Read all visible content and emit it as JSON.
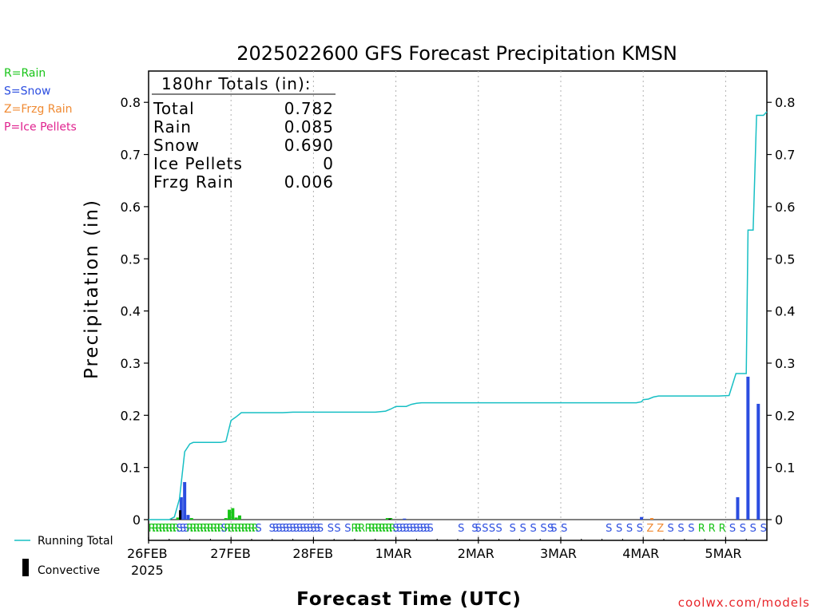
{
  "chart_data": {
    "type": "bar",
    "title": "2025022600 GFS Forecast Precipitation KMSN",
    "xlabel": "Forecast Time (UTC)",
    "ylabel": "Precipitation (in)",
    "ylim": [
      0,
      0.86
    ],
    "yticks": [
      "0",
      "0.1",
      "0.2",
      "0.3",
      "0.4",
      "0.5",
      "0.6",
      "0.7",
      "0.8"
    ],
    "xlim_hours": [
      0,
      180
    ],
    "x_ticks": [
      {
        "label": "26FEB",
        "hour": 0,
        "sub": "2025"
      },
      {
        "label": "27FEB",
        "hour": 24
      },
      {
        "label": "28FEB",
        "hour": 48
      },
      {
        "label": "1MAR",
        "hour": 72
      },
      {
        "label": "2MAR",
        "hour": 96
      },
      {
        "label": "3MAR",
        "hour": 120
      },
      {
        "label": "4MAR",
        "hour": 144
      },
      {
        "label": "5MAR",
        "hour": 168
      }
    ],
    "legend": [
      {
        "label": "R=Rain",
        "color": "#17c417"
      },
      {
        "label": "S=Snow",
        "color": "#2b4de0"
      },
      {
        "label": "Z=Frzg Rain",
        "color": "#f08a32"
      },
      {
        "label": "P=Ice Pellets",
        "color": "#e0238f"
      }
    ],
    "series_legend": [
      {
        "label": "Running Total",
        "color": "#17bfc4"
      },
      {
        "label": "Convective",
        "color": "#000000"
      }
    ],
    "totals": {
      "header": "180hr Totals (in):",
      "rows": [
        {
          "name": "Total",
          "value": "0.782"
        },
        {
          "name": "Rain",
          "value": "0.085"
        },
        {
          "name": "Snow",
          "value": "0.690"
        },
        {
          "name": "Ice Pellets",
          "value": "0"
        },
        {
          "name": "Frzg Rain",
          "value": "0.006"
        }
      ]
    },
    "running_total": [
      [
        0,
        0
      ],
      [
        6,
        0
      ],
      [
        7.5,
        0.005
      ],
      [
        9,
        0.04
      ],
      [
        10.5,
        0.13
      ],
      [
        12,
        0.145
      ],
      [
        13,
        0.148
      ],
      [
        21,
        0.148
      ],
      [
        22.5,
        0.15
      ],
      [
        24,
        0.19
      ],
      [
        25.5,
        0.197
      ],
      [
        27,
        0.205
      ],
      [
        39,
        0.205
      ],
      [
        42,
        0.206
      ],
      [
        66,
        0.206
      ],
      [
        69,
        0.208
      ],
      [
        70.5,
        0.212
      ],
      [
        72,
        0.217
      ],
      [
        75,
        0.217
      ],
      [
        76.5,
        0.221
      ],
      [
        78,
        0.223
      ],
      [
        79.5,
        0.224
      ],
      [
        142,
        0.224
      ],
      [
        143.5,
        0.226
      ],
      [
        144,
        0.23
      ],
      [
        145.5,
        0.231
      ],
      [
        147,
        0.235
      ],
      [
        148.5,
        0.237
      ],
      [
        166,
        0.237
      ],
      [
        169,
        0.238
      ],
      [
        171,
        0.28
      ],
      [
        174,
        0.28
      ],
      [
        174.5,
        0.555
      ],
      [
        176,
        0.555
      ],
      [
        177,
        0.775
      ],
      [
        179,
        0.775
      ],
      [
        180,
        0.782
      ]
    ],
    "bars": [
      {
        "hour": 8.5,
        "value": 0.004,
        "type": "R"
      },
      {
        "hour": 9.5,
        "value": 0.043,
        "type": "S"
      },
      {
        "hour": 10.5,
        "value": 0.072,
        "type": "S"
      },
      {
        "hour": 11.5,
        "value": 0.009,
        "type": "S"
      },
      {
        "hour": 12.5,
        "value": 0.003,
        "type": "R"
      },
      {
        "hour": 22.5,
        "value": 0.003,
        "type": "R"
      },
      {
        "hour": 23.5,
        "value": 0.019,
        "type": "R"
      },
      {
        "hour": 24.5,
        "value": 0.022,
        "type": "R"
      },
      {
        "hour": 25.5,
        "value": 0.004,
        "type": "R"
      },
      {
        "hour": 26.5,
        "value": 0.008,
        "type": "R"
      },
      {
        "hour": 69.5,
        "value": 0.003,
        "type": "R"
      },
      {
        "hour": 70.5,
        "value": 0.003,
        "type": "R"
      },
      {
        "hour": 74.5,
        "value": 0.002,
        "type": "S"
      },
      {
        "hour": 143.5,
        "value": 0.005,
        "type": "S"
      },
      {
        "hour": 146.5,
        "value": 0.003,
        "type": "Z"
      },
      {
        "hour": 171.5,
        "value": 0.043,
        "type": "S"
      },
      {
        "hour": 174.5,
        "value": 0.274,
        "type": "S"
      },
      {
        "hour": 177.5,
        "value": 0.222,
        "type": "S"
      }
    ],
    "convective": [
      {
        "hour": 9.2,
        "value": 0.018
      },
      {
        "hour": 70.2,
        "value": 0.002
      }
    ],
    "ptype_strip": [
      {
        "hour": 1,
        "t": "R"
      },
      {
        "hour": 2,
        "t": "R"
      },
      {
        "hour": 3,
        "t": "R"
      },
      {
        "hour": 4,
        "t": "R"
      },
      {
        "hour": 5,
        "t": "R"
      },
      {
        "hour": 6,
        "t": "R"
      },
      {
        "hour": 7,
        "t": "R"
      },
      {
        "hour": 8,
        "t": "R"
      },
      {
        "hour": 9,
        "t": "S"
      },
      {
        "hour": 10,
        "t": "S"
      },
      {
        "hour": 11,
        "t": "S"
      },
      {
        "hour": 12,
        "t": "R"
      },
      {
        "hour": 13,
        "t": "R"
      },
      {
        "hour": 14,
        "t": "R"
      },
      {
        "hour": 15,
        "t": "R"
      },
      {
        "hour": 16,
        "t": "R"
      },
      {
        "hour": 17,
        "t": "R"
      },
      {
        "hour": 18,
        "t": "R"
      },
      {
        "hour": 19,
        "t": "R"
      },
      {
        "hour": 20,
        "t": "R"
      },
      {
        "hour": 21,
        "t": "R"
      },
      {
        "hour": 22,
        "t": "S"
      },
      {
        "hour": 23,
        "t": "R"
      },
      {
        "hour": 24,
        "t": "R"
      },
      {
        "hour": 25,
        "t": "R"
      },
      {
        "hour": 26,
        "t": "R"
      },
      {
        "hour": 27,
        "t": "R"
      },
      {
        "hour": 28,
        "t": "R"
      },
      {
        "hour": 29,
        "t": "R"
      },
      {
        "hour": 30,
        "t": "R"
      },
      {
        "hour": 31,
        "t": "R"
      },
      {
        "hour": 32,
        "t": "S"
      },
      {
        "hour": 36,
        "t": "S"
      },
      {
        "hour": 37,
        "t": "S"
      },
      {
        "hour": 38,
        "t": "S"
      },
      {
        "hour": 39,
        "t": "S"
      },
      {
        "hour": 40,
        "t": "S"
      },
      {
        "hour": 41,
        "t": "S"
      },
      {
        "hour": 42,
        "t": "S"
      },
      {
        "hour": 43,
        "t": "S"
      },
      {
        "hour": 44,
        "t": "S"
      },
      {
        "hour": 45,
        "t": "S"
      },
      {
        "hour": 46,
        "t": "S"
      },
      {
        "hour": 47,
        "t": "S"
      },
      {
        "hour": 48,
        "t": "S"
      },
      {
        "hour": 49,
        "t": "S"
      },
      {
        "hour": 50,
        "t": "S"
      },
      {
        "hour": 53,
        "t": "S"
      },
      {
        "hour": 55,
        "t": "S"
      },
      {
        "hour": 58,
        "t": "S"
      },
      {
        "hour": 60,
        "t": "R"
      },
      {
        "hour": 61,
        "t": "R"
      },
      {
        "hour": 62,
        "t": "R"
      },
      {
        "hour": 64,
        "t": "R"
      },
      {
        "hour": 65,
        "t": "R"
      },
      {
        "hour": 66,
        "t": "R"
      },
      {
        "hour": 67,
        "t": "R"
      },
      {
        "hour": 68,
        "t": "R"
      },
      {
        "hour": 69,
        "t": "R"
      },
      {
        "hour": 70,
        "t": "R"
      },
      {
        "hour": 71,
        "t": "R"
      },
      {
        "hour": 72,
        "t": "S"
      },
      {
        "hour": 73,
        "t": "S"
      },
      {
        "hour": 74,
        "t": "S"
      },
      {
        "hour": 75,
        "t": "S"
      },
      {
        "hour": 76,
        "t": "S"
      },
      {
        "hour": 77,
        "t": "S"
      },
      {
        "hour": 78,
        "t": "S"
      },
      {
        "hour": 79,
        "t": "S"
      },
      {
        "hour": 80,
        "t": "S"
      },
      {
        "hour": 81,
        "t": "S"
      },
      {
        "hour": 82,
        "t": "S"
      },
      {
        "hour": 91,
        "t": "S"
      },
      {
        "hour": 95,
        "t": "S"
      },
      {
        "hour": 96,
        "t": "S"
      },
      {
        "hour": 98,
        "t": "S"
      },
      {
        "hour": 100,
        "t": "S"
      },
      {
        "hour": 102,
        "t": "S"
      },
      {
        "hour": 106,
        "t": "S"
      },
      {
        "hour": 109,
        "t": "S"
      },
      {
        "hour": 112,
        "t": "S"
      },
      {
        "hour": 115,
        "t": "S"
      },
      {
        "hour": 117,
        "t": "S"
      },
      {
        "hour": 118,
        "t": "S"
      },
      {
        "hour": 121,
        "t": "S"
      },
      {
        "hour": 134,
        "t": "S"
      },
      {
        "hour": 137,
        "t": "S"
      },
      {
        "hour": 140,
        "t": "S"
      },
      {
        "hour": 143,
        "t": "S"
      },
      {
        "hour": 146,
        "t": "Z"
      },
      {
        "hour": 149,
        "t": "Z"
      },
      {
        "hour": 152,
        "t": "S"
      },
      {
        "hour": 155,
        "t": "S"
      },
      {
        "hour": 158,
        "t": "S"
      },
      {
        "hour": 161,
        "t": "R"
      },
      {
        "hour": 164,
        "t": "R"
      },
      {
        "hour": 167,
        "t": "R"
      },
      {
        "hour": 170,
        "t": "S"
      },
      {
        "hour": 173,
        "t": "S"
      },
      {
        "hour": 176,
        "t": "S"
      },
      {
        "hour": 179,
        "t": "S"
      }
    ],
    "colors": {
      "R": "#17c417",
      "S": "#2b4de0",
      "Z": "#f08a32",
      "P": "#e0238f",
      "running": "#17bfc4",
      "convective": "#000000"
    },
    "credit": "coolwx.com/models"
  }
}
